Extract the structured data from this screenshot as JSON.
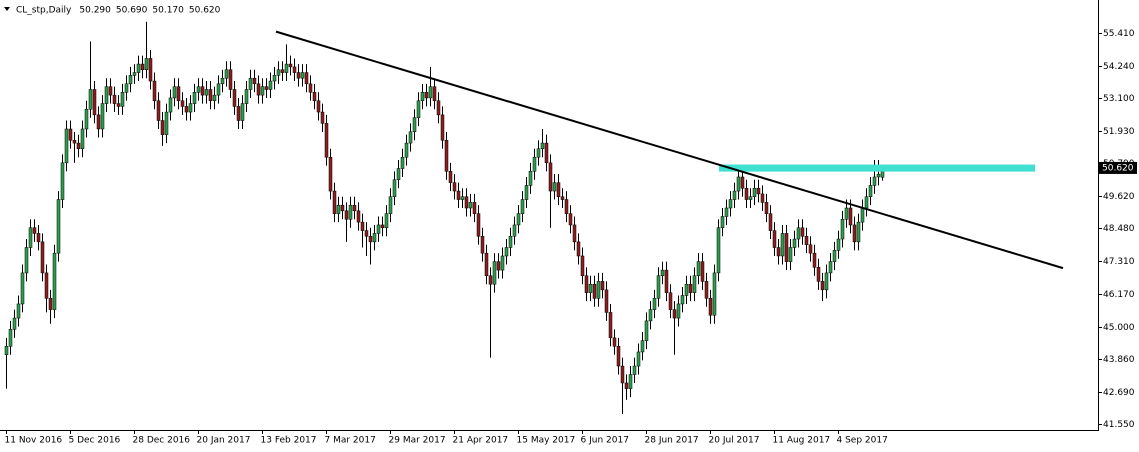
{
  "chart_data": {
    "type": "candlestick",
    "title": "CL_stp,Daily",
    "header_values": [
      "50.290",
      "50.690",
      "50.170",
      "50.620"
    ],
    "up_color": "#2f9e4f",
    "down_color": "#8b1e1e",
    "wick_color": "#000000",
    "xlim": [
      -1.5,
      273
    ],
    "ylim": [
      41.44,
      56.5
    ],
    "xticks": [
      {
        "value": 0,
        "label": "11 Nov 2016"
      },
      {
        "value": 16,
        "label": "5 Dec 2016"
      },
      {
        "value": 32,
        "label": "28 Dec 2016"
      },
      {
        "value": 48,
        "label": "20 Jan 2017"
      },
      {
        "value": 64,
        "label": "13 Feb 2017"
      },
      {
        "value": 80,
        "label": "7 Mar 2017"
      },
      {
        "value": 96,
        "label": "29 Mar 2017"
      },
      {
        "value": 112,
        "label": "21 Apr 2017"
      },
      {
        "value": 128,
        "label": "15 May 2017"
      },
      {
        "value": 144,
        "label": "6 Jun 2017"
      },
      {
        "value": 160,
        "label": "28 Jun 2017"
      },
      {
        "value": 176,
        "label": "20 Jul 2017"
      },
      {
        "value": 192,
        "label": "11 Aug 2017"
      },
      {
        "value": 208,
        "label": "4 Sep 2017"
      }
    ],
    "yticks": [
      {
        "value": 55.41,
        "label": "55.410"
      },
      {
        "value": 54.24,
        "label": "54.240"
      },
      {
        "value": 53.1,
        "label": "53.100"
      },
      {
        "value": 51.93,
        "label": "51.930"
      },
      {
        "value": 50.79,
        "label": "50.790"
      },
      {
        "value": 49.62,
        "label": "49.620"
      },
      {
        "value": 48.48,
        "label": "48.480"
      },
      {
        "value": 47.31,
        "label": "47.310"
      },
      {
        "value": 46.17,
        "label": "46.170"
      },
      {
        "value": 45.0,
        "label": "45.000"
      },
      {
        "value": 43.86,
        "label": "43.860"
      },
      {
        "value": 42.69,
        "label": "42.690"
      },
      {
        "value": 41.55,
        "label": "41.550"
      }
    ],
    "last_price": {
      "value": 50.62,
      "label": "50.620"
    },
    "trendline": {
      "x": [
        67.5,
        264.25
      ],
      "y": [
        55.45,
        47.07
      ],
      "color": "#000000"
    },
    "zone": {
      "x": [
        178.25,
        257.25
      ],
      "y": [
        50.49,
        50.74
      ],
      "color": "#40e0d0"
    },
    "open": [
      44.0,
      44.3,
      44.9,
      45.3,
      45.8,
      46.9,
      47.8,
      48.5,
      48.3,
      48.0,
      46.9,
      46.0,
      45.6,
      47.6,
      49.5,
      50.8,
      52.0,
      51.6,
      51.5,
      51.3,
      52.0,
      52.7,
      53.4,
      52.5,
      52.0,
      52.9,
      53.5,
      53.2,
      52.9,
      52.8,
      53.3,
      53.6,
      53.9,
      54.0,
      54.3,
      54.1,
      54.5,
      53.7,
      53.0,
      52.3,
      51.8,
      52.6,
      53.1,
      53.5,
      53.0,
      52.8,
      52.6,
      52.9,
      53.3,
      53.5,
      53.2,
      53.4,
      53.0,
      53.2,
      53.6,
      53.8,
      54.1,
      53.4,
      52.8,
      52.3,
      52.9,
      53.4,
      53.8,
      53.6,
      53.2,
      53.5,
      53.4,
      53.7,
      53.9,
      54.1,
      54.0,
      54.3,
      54.2,
      54.0,
      53.8,
      54.0,
      53.6,
      53.3,
      53.0,
      52.6,
      52.2,
      51.0,
      49.8,
      49.0,
      49.3,
      49.1,
      48.8,
      49.3,
      49.1,
      48.7,
      48.4,
      48.2,
      48.0,
      48.3,
      48.6,
      48.5,
      49.0,
      49.6,
      50.2,
      50.6,
      51.0,
      51.5,
      51.9,
      52.4,
      53.0,
      53.3,
      53.1,
      53.5,
      53.0,
      52.5,
      51.6,
      50.5,
      50.1,
      49.8,
      49.5,
      49.6,
      49.2,
      49.4,
      49.0,
      48.2,
      47.6,
      46.8,
      46.5,
      47.3,
      47.0,
      47.5,
      47.8,
      48.2,
      48.6,
      49.0,
      49.5,
      50.0,
      50.5,
      51.0,
      51.3,
      51.5,
      50.8,
      49.8,
      50.1,
      49.6,
      49.5,
      49.0,
      48.6,
      48.0,
      47.5,
      46.8,
      46.2,
      46.5,
      46.0,
      46.6,
      46.3,
      45.5,
      44.6,
      44.3,
      43.6,
      43.0,
      42.8,
      43.3,
      43.6,
      44.1,
      44.5,
      45.2,
      45.6,
      46.0,
      46.8,
      47.0,
      46.2,
      45.6,
      45.3,
      45.8,
      46.1,
      46.5,
      46.2,
      46.8,
      47.3,
      46.6,
      46.0,
      45.4,
      46.9,
      48.5,
      48.9,
      49.2,
      49.5,
      49.8,
      50.3,
      49.9,
      49.5,
      49.6,
      49.9,
      49.7,
      49.4,
      49.0,
      48.4,
      47.8,
      47.5,
      48.3,
      47.3,
      47.8,
      48.1,
      48.5,
      48.2,
      47.9,
      47.6,
      47.1,
      46.6,
      46.3,
      46.9,
      47.3,
      47.7,
      48.1,
      48.8,
      49.2,
      48.6,
      48.0,
      48.7,
      49.2,
      49.6,
      50.0,
      50.3,
      50.29
    ],
    "high": [
      44.6,
      45.2,
      45.6,
      46.1,
      47.2,
      48.1,
      48.8,
      48.8,
      48.6,
      48.3,
      47.2,
      46.3,
      47.9,
      49.8,
      51.1,
      52.3,
      52.3,
      51.9,
      51.8,
      52.3,
      53.0,
      55.1,
      53.7,
      52.8,
      53.2,
      53.8,
      53.8,
      53.5,
      53.2,
      53.6,
      53.9,
      54.2,
      54.3,
      54.6,
      54.6,
      55.8,
      54.8,
      54.0,
      53.3,
      52.6,
      52.9,
      53.4,
      53.8,
      53.8,
      53.3,
      53.1,
      53.2,
      53.6,
      53.8,
      53.8,
      53.7,
      53.7,
      53.5,
      53.9,
      54.1,
      54.4,
      54.4,
      53.7,
      53.1,
      53.2,
      53.7,
      54.1,
      54.1,
      53.9,
      53.8,
      53.8,
      54.0,
      54.2,
      54.4,
      54.4,
      55.0,
      54.6,
      54.5,
      54.3,
      54.3,
      54.3,
      53.9,
      53.6,
      53.3,
      52.9,
      52.5,
      51.3,
      50.1,
      49.6,
      49.6,
      49.4,
      49.6,
      49.6,
      49.4,
      49.0,
      48.7,
      48.5,
      48.6,
      48.9,
      48.9,
      49.3,
      49.9,
      50.5,
      50.9,
      51.3,
      51.8,
      52.2,
      52.7,
      53.3,
      53.6,
      53.6,
      54.2,
      53.8,
      53.3,
      52.8,
      51.9,
      50.8,
      50.4,
      50.1,
      49.9,
      49.9,
      49.7,
      49.7,
      49.3,
      48.5,
      47.9,
      47.1,
      47.6,
      47.6,
      47.8,
      48.1,
      48.5,
      48.9,
      49.3,
      49.8,
      50.3,
      50.8,
      51.3,
      51.6,
      52.0,
      51.8,
      51.1,
      50.4,
      50.4,
      49.9,
      49.8,
      49.3,
      48.9,
      48.3,
      47.8,
      47.1,
      46.8,
      46.8,
      46.9,
      46.9,
      46.6,
      45.8,
      44.9,
      44.6,
      43.9,
      43.3,
      43.6,
      43.9,
      44.4,
      44.8,
      45.5,
      45.9,
      46.3,
      47.1,
      47.3,
      47.3,
      46.5,
      45.9,
      46.1,
      46.4,
      46.8,
      46.8,
      47.1,
      47.6,
      47.6,
      46.9,
      46.3,
      47.2,
      48.8,
      49.2,
      49.5,
      49.8,
      50.1,
      50.6,
      50.6,
      50.2,
      49.9,
      50.2,
      50.2,
      50.0,
      49.7,
      49.3,
      48.7,
      48.1,
      48.6,
      48.6,
      48.1,
      48.4,
      48.8,
      48.8,
      48.5,
      48.2,
      47.9,
      47.4,
      46.9,
      47.2,
      47.6,
      48.0,
      48.4,
      49.1,
      49.5,
      49.5,
      48.9,
      49.0,
      49.5,
      49.9,
      50.3,
      50.9,
      50.9,
      50.69
    ],
    "low": [
      42.8,
      44.0,
      44.6,
      45.0,
      45.5,
      46.6,
      47.5,
      48.0,
      47.7,
      46.6,
      45.5,
      45.1,
      45.3,
      47.3,
      49.2,
      50.5,
      51.3,
      50.8,
      51.0,
      51.0,
      51.7,
      52.4,
      52.2,
      51.7,
      51.7,
      52.6,
      52.9,
      52.6,
      52.5,
      52.5,
      53.0,
      53.3,
      53.6,
      53.7,
      53.8,
      53.8,
      53.4,
      52.7,
      52.0,
      51.4,
      51.5,
      52.3,
      52.8,
      52.7,
      52.5,
      52.3,
      52.3,
      52.6,
      53.0,
      52.9,
      52.9,
      52.7,
      52.7,
      52.9,
      53.3,
      53.5,
      53.1,
      52.5,
      52.0,
      52.0,
      52.6,
      53.1,
      53.3,
      52.9,
      52.9,
      53.1,
      53.1,
      53.4,
      53.6,
      53.7,
      53.7,
      53.9,
      53.7,
      53.5,
      53.5,
      53.3,
      53.0,
      52.7,
      52.3,
      51.9,
      50.7,
      49.5,
      48.7,
      48.7,
      48.8,
      48.0,
      48.5,
      48.8,
      48.4,
      47.8,
      47.5,
      47.2,
      47.7,
      48.0,
      48.2,
      48.2,
      48.7,
      49.3,
      49.9,
      50.3,
      50.7,
      51.2,
      51.6,
      52.1,
      52.7,
      52.8,
      52.8,
      52.7,
      52.2,
      51.3,
      50.2,
      49.8,
      49.5,
      49.2,
      49.2,
      48.9,
      48.9,
      48.7,
      47.9,
      47.3,
      46.5,
      43.9,
      46.2,
      46.7,
      46.7,
      47.2,
      47.5,
      47.9,
      48.3,
      48.7,
      49.2,
      49.7,
      50.2,
      50.7,
      51.0,
      50.5,
      48.5,
      49.5,
      49.3,
      49.2,
      48.7,
      48.3,
      47.7,
      47.2,
      46.5,
      45.9,
      45.9,
      45.7,
      45.7,
      46.0,
      45.2,
      44.3,
      44.0,
      43.3,
      41.9,
      42.4,
      42.5,
      43.0,
      43.3,
      43.8,
      44.2,
      44.9,
      45.3,
      45.7,
      46.5,
      45.9,
      45.3,
      44.0,
      45.0,
      45.5,
      45.8,
      45.9,
      45.9,
      46.5,
      46.3,
      45.7,
      45.1,
      45.1,
      46.6,
      48.2,
      48.6,
      48.9,
      49.2,
      49.5,
      49.6,
      49.2,
      49.2,
      49.3,
      49.4,
      49.1,
      48.7,
      48.1,
      47.5,
      47.2,
      47.2,
      47.0,
      47.0,
      47.5,
      47.8,
      47.9,
      47.6,
      47.3,
      46.8,
      46.3,
      45.9,
      46.0,
      46.6,
      47.0,
      47.4,
      47.8,
      48.5,
      48.3,
      47.7,
      47.7,
      48.4,
      48.9,
      49.3,
      49.7,
      50.0,
      50.17
    ],
    "close": [
      44.3,
      44.9,
      45.3,
      45.8,
      46.9,
      47.8,
      48.5,
      48.3,
      48.0,
      46.9,
      46.0,
      45.6,
      47.6,
      49.5,
      50.8,
      52.0,
      51.6,
      51.5,
      51.3,
      52.0,
      52.7,
      53.4,
      52.5,
      52.0,
      52.9,
      53.5,
      53.2,
      52.9,
      52.8,
      53.3,
      53.6,
      53.9,
      54.0,
      54.3,
      54.1,
      54.5,
      53.7,
      53.0,
      52.3,
      51.8,
      52.6,
      53.1,
      53.5,
      53.0,
      52.8,
      52.6,
      52.9,
      53.3,
      53.5,
      53.2,
      53.4,
      53.0,
      53.2,
      53.6,
      53.8,
      54.1,
      53.4,
      52.8,
      52.3,
      52.9,
      53.4,
      53.8,
      53.6,
      53.2,
      53.5,
      53.4,
      53.7,
      53.9,
      54.1,
      54.0,
      54.3,
      54.2,
      54.0,
      53.8,
      54.0,
      53.6,
      53.3,
      53.0,
      52.6,
      52.2,
      51.0,
      49.8,
      49.0,
      49.3,
      49.1,
      48.8,
      49.3,
      49.1,
      48.7,
      48.4,
      48.2,
      48.0,
      48.3,
      48.6,
      48.5,
      49.0,
      49.6,
      50.2,
      50.6,
      51.0,
      51.5,
      51.9,
      52.4,
      53.0,
      53.3,
      53.1,
      53.5,
      53.0,
      52.5,
      51.6,
      50.5,
      50.1,
      49.8,
      49.5,
      49.6,
      49.2,
      49.4,
      49.0,
      48.2,
      47.6,
      46.8,
      46.5,
      47.3,
      47.0,
      47.5,
      47.8,
      48.2,
      48.6,
      49.0,
      49.5,
      50.0,
      50.5,
      51.0,
      51.3,
      51.5,
      50.8,
      49.8,
      50.1,
      49.6,
      49.5,
      49.0,
      48.6,
      48.0,
      47.5,
      46.8,
      46.2,
      46.5,
      46.0,
      46.6,
      46.3,
      45.5,
      44.6,
      44.3,
      43.6,
      43.0,
      42.8,
      43.3,
      43.6,
      44.1,
      44.5,
      45.2,
      45.6,
      46.0,
      46.8,
      47.0,
      46.2,
      45.6,
      45.3,
      45.8,
      46.1,
      46.5,
      46.2,
      46.8,
      47.3,
      46.6,
      46.0,
      45.4,
      46.9,
      48.5,
      48.9,
      49.2,
      49.5,
      49.8,
      50.3,
      49.9,
      49.5,
      49.6,
      49.9,
      49.7,
      49.4,
      49.0,
      48.4,
      47.8,
      47.5,
      48.3,
      47.3,
      47.8,
      48.1,
      48.5,
      48.2,
      47.9,
      47.6,
      47.1,
      46.6,
      46.3,
      46.9,
      47.3,
      47.7,
      48.1,
      48.8,
      49.2,
      48.6,
      48.0,
      48.7,
      49.2,
      49.6,
      50.0,
      50.3,
      50.4,
      50.62
    ]
  }
}
